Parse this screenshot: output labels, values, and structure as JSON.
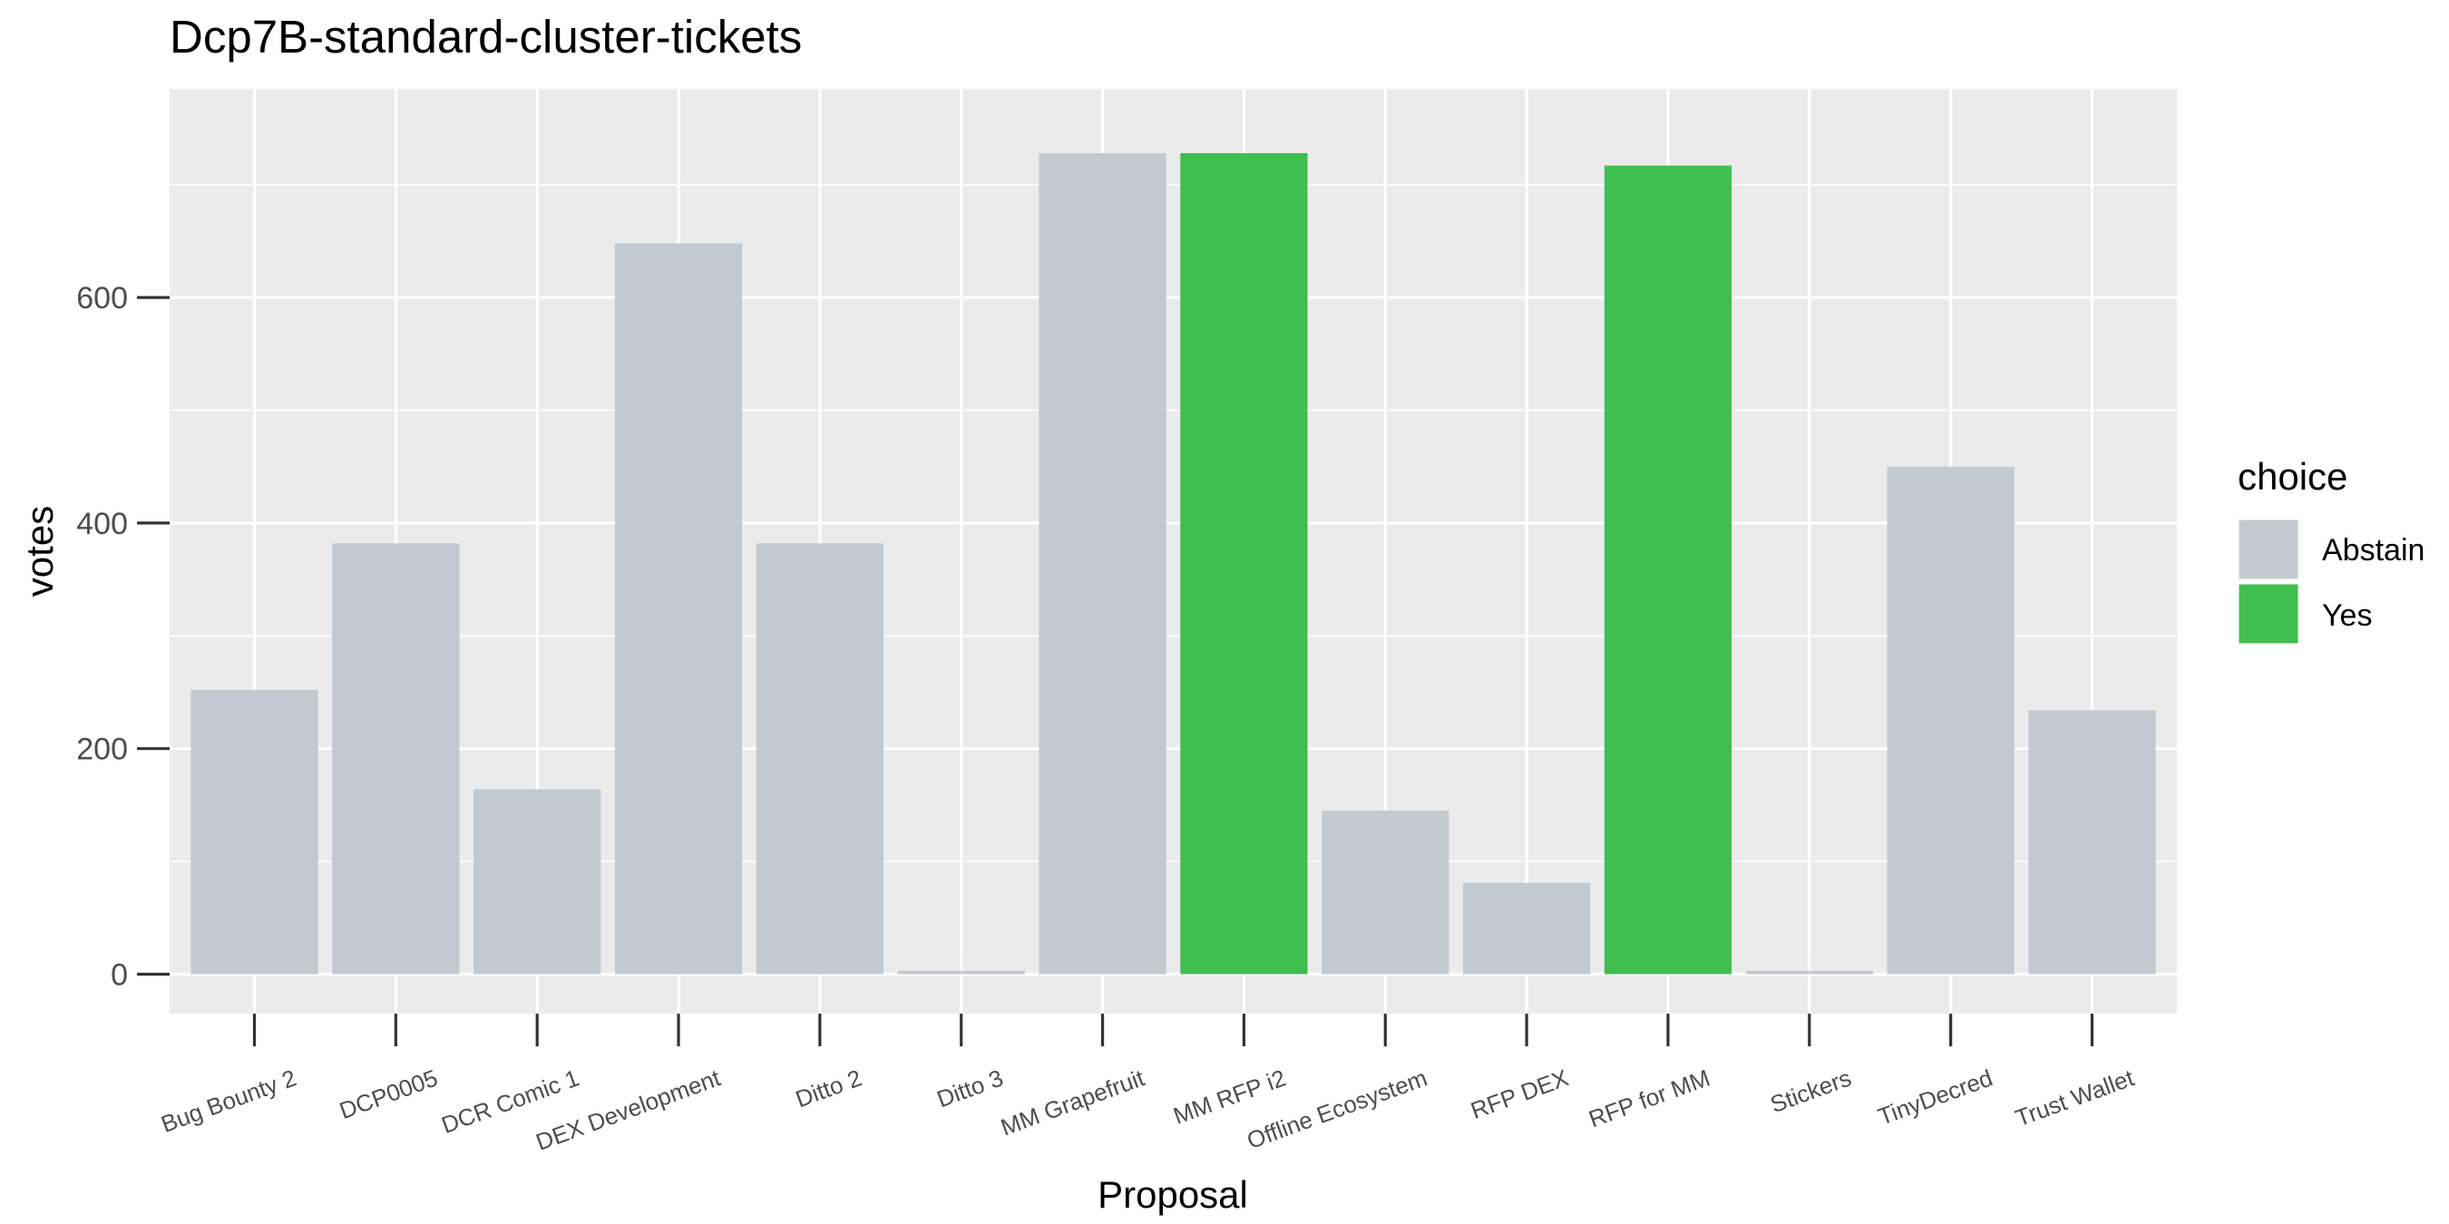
{
  "chart_data": {
    "type": "bar",
    "title": "Dcp7B-standard-cluster-tickets",
    "xlabel": "Proposal",
    "ylabel": "votes",
    "ylim": [
      -35,
      785
    ],
    "yticks": [
      0,
      200,
      400,
      600
    ],
    "grid": true,
    "legend_position": "right",
    "legend_title": "choice",
    "legend": [
      {
        "name": "Abstain",
        "color": "#c3c9d0"
      },
      {
        "name": "Yes",
        "color": "#41be50"
      }
    ],
    "categories": [
      "Bug Bounty 2",
      "DCP0005",
      "DCR Comic 1",
      "DEX Development",
      "Ditto 2",
      "Ditto 3",
      "MM Grapefruit",
      "MM RFP i2",
      "Offline Ecosystem",
      "RFP DEX",
      "RFP for MM",
      "Stickers",
      "TinyDecred",
      "Trust Wallet"
    ],
    "values": [
      252,
      382,
      164,
      648,
      382,
      3,
      728,
      728,
      145,
      81,
      717,
      3,
      450,
      234
    ],
    "choices": [
      "Abstain",
      "Abstain",
      "Abstain",
      "Abstain",
      "Abstain",
      "Abstain",
      "Abstain",
      "Yes",
      "Abstain",
      "Abstain",
      "Yes",
      "Abstain",
      "Abstain",
      "Abstain"
    ]
  },
  "colors": {
    "panel_background": "#ebebeb",
    "grid": "#ffffff",
    "tick_label": "#4d4d4d",
    "tick_mark": "#333333"
  }
}
